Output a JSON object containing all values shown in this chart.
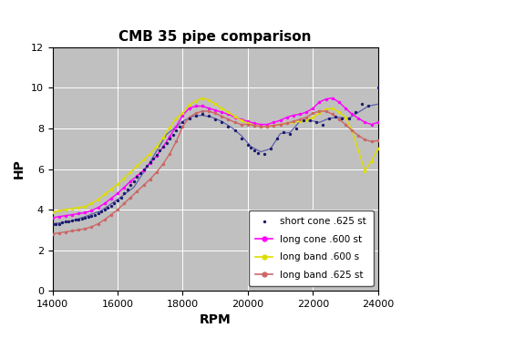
{
  "title": "CMB 35 pipe comparison",
  "xlabel": "RPM",
  "ylabel": "HP",
  "xlim": [
    14000,
    24000
  ],
  "ylim": [
    0,
    12
  ],
  "yticks": [
    0,
    2,
    4,
    6,
    8,
    10,
    12
  ],
  "xticks": [
    14000,
    16000,
    18000,
    20000,
    22000,
    24000
  ],
  "bg_color": "#c0c0c0",
  "fig_bg_color": "#ffffff",
  "series": {
    "short_cone": {
      "label": "short cone .625 st",
      "color": "#1a1a6e",
      "line_color": "#5555aa",
      "x": [
        14000,
        14100,
        14200,
        14300,
        14400,
        14500,
        14600,
        14700,
        14800,
        14900,
        15000,
        15100,
        15200,
        15300,
        15400,
        15500,
        15600,
        15700,
        15800,
        15900,
        16000,
        16100,
        16200,
        16300,
        16400,
        16500,
        16600,
        16700,
        16800,
        16900,
        17000,
        17100,
        17200,
        17300,
        17400,
        17500,
        17600,
        17700,
        17800,
        17900,
        18000,
        18200,
        18400,
        18600,
        18800,
        19000,
        19200,
        19400,
        19600,
        19800,
        20000,
        20100,
        20200,
        20300,
        20500,
        20700,
        20900,
        21100,
        21300,
        21500,
        21700,
        21900,
        22100,
        22300,
        22500,
        22700,
        22900,
        23100,
        23300,
        23500,
        23700,
        24000
      ],
      "y": [
        3.3,
        3.3,
        3.3,
        3.35,
        3.4,
        3.4,
        3.45,
        3.5,
        3.5,
        3.55,
        3.6,
        3.65,
        3.7,
        3.75,
        3.8,
        3.9,
        4.0,
        4.1,
        4.2,
        4.3,
        4.45,
        4.6,
        4.8,
        5.0,
        5.2,
        5.4,
        5.6,
        5.8,
        6.0,
        6.15,
        6.35,
        6.5,
        6.7,
        6.9,
        7.1,
        7.3,
        7.5,
        7.7,
        7.9,
        8.1,
        8.3,
        8.5,
        8.65,
        8.7,
        8.65,
        8.45,
        8.3,
        8.1,
        7.9,
        7.5,
        7.2,
        7.05,
        6.9,
        6.8,
        6.75,
        7.0,
        7.5,
        7.8,
        7.75,
        8.0,
        8.4,
        8.4,
        8.3,
        8.2,
        8.5,
        8.6,
        8.5,
        8.5,
        8.8,
        9.2,
        9.1,
        10.0
      ],
      "line_x": [
        14000,
        14500,
        15000,
        15500,
        16000,
        16500,
        17000,
        17500,
        18000,
        18300,
        18600,
        18900,
        19200,
        19500,
        19800,
        20100,
        20400,
        20700,
        21000,
        21300,
        21600,
        21900,
        22200,
        22500,
        22800,
        23100,
        23400,
        23700,
        24000
      ],
      "line_y": [
        3.3,
        3.4,
        3.65,
        3.95,
        4.5,
        5.1,
        6.35,
        7.7,
        8.35,
        8.6,
        8.65,
        8.55,
        8.35,
        8.05,
        7.65,
        7.1,
        6.85,
        7.0,
        7.75,
        7.8,
        8.35,
        8.4,
        8.3,
        8.5,
        8.55,
        8.5,
        8.8,
        9.1,
        9.2
      ]
    },
    "long_cone": {
      "label": "long cone .600 st",
      "color": "#ff00ff",
      "x": [
        14000,
        14200,
        14400,
        14600,
        14800,
        15000,
        15200,
        15400,
        15600,
        15800,
        16000,
        16200,
        16400,
        16600,
        16800,
        17000,
        17200,
        17400,
        17600,
        17800,
        18000,
        18200,
        18400,
        18600,
        18800,
        19000,
        19200,
        19400,
        19600,
        19800,
        20000,
        20200,
        20400,
        20600,
        20800,
        21000,
        21200,
        21400,
        21600,
        21800,
        22000,
        22200,
        22400,
        22600,
        22800,
        23000,
        23200,
        23400,
        23600,
        23800,
        24000
      ],
      "y": [
        3.6,
        3.65,
        3.7,
        3.75,
        3.8,
        3.85,
        3.95,
        4.1,
        4.3,
        4.55,
        4.8,
        5.1,
        5.4,
        5.65,
        5.95,
        6.3,
        6.65,
        7.1,
        7.6,
        8.1,
        8.65,
        9.0,
        9.1,
        9.1,
        9.0,
        8.9,
        8.8,
        8.7,
        8.55,
        8.45,
        8.35,
        8.25,
        8.2,
        8.2,
        8.3,
        8.4,
        8.55,
        8.65,
        8.7,
        8.8,
        9.0,
        9.3,
        9.45,
        9.5,
        9.3,
        9.0,
        8.7,
        8.5,
        8.3,
        8.2,
        8.3
      ]
    },
    "long_band_600": {
      "label": "long band .600 s",
      "color": "#dddd00",
      "x": [
        14000,
        14200,
        14400,
        14600,
        14800,
        15000,
        15200,
        15400,
        15600,
        15800,
        16000,
        16200,
        16400,
        16600,
        16800,
        17000,
        17200,
        17400,
        17600,
        17800,
        18000,
        18200,
        18400,
        18600,
        18800,
        19000,
        19200,
        19400,
        19600,
        19800,
        20000,
        20200,
        20400,
        20600,
        20800,
        21000,
        21200,
        21400,
        21600,
        21800,
        22000,
        22200,
        22400,
        22600,
        22800,
        23000,
        23200,
        23400,
        23600,
        23800,
        24000
      ],
      "y": [
        3.85,
        3.95,
        4.0,
        4.05,
        4.1,
        4.15,
        4.3,
        4.5,
        4.75,
        5.0,
        5.25,
        5.55,
        5.85,
        6.15,
        6.45,
        6.75,
        7.1,
        7.55,
        8.05,
        8.5,
        8.75,
        9.15,
        9.35,
        9.5,
        9.4,
        9.2,
        9.0,
        8.8,
        8.6,
        8.4,
        8.25,
        8.15,
        8.1,
        8.1,
        8.15,
        8.2,
        8.25,
        8.3,
        8.35,
        8.4,
        8.55,
        8.75,
        8.95,
        9.0,
        8.8,
        8.55,
        7.9,
        6.9,
        5.9,
        6.4,
        7.0
      ]
    },
    "long_band_625": {
      "label": "long band .625 st",
      "color": "#cc6666",
      "x": [
        14000,
        14200,
        14400,
        14600,
        14800,
        15000,
        15200,
        15400,
        15600,
        15800,
        16000,
        16200,
        16400,
        16600,
        16800,
        17000,
        17200,
        17400,
        17600,
        17800,
        18000,
        18200,
        18400,
        18600,
        18800,
        19000,
        19200,
        19400,
        19600,
        19800,
        20000,
        20200,
        20400,
        20600,
        20800,
        21000,
        21200,
        21400,
        21600,
        21800,
        22000,
        22200,
        22400,
        22600,
        22800,
        23000,
        23200,
        23400,
        23600,
        23800,
        24000
      ],
      "y": [
        2.8,
        2.85,
        2.9,
        2.95,
        3.0,
        3.05,
        3.15,
        3.3,
        3.5,
        3.75,
        4.0,
        4.3,
        4.6,
        4.9,
        5.2,
        5.5,
        5.85,
        6.25,
        6.75,
        7.35,
        8.1,
        8.55,
        8.75,
        8.85,
        8.85,
        8.75,
        8.6,
        8.45,
        8.3,
        8.2,
        8.2,
        8.15,
        8.1,
        8.1,
        8.15,
        8.2,
        8.25,
        8.35,
        8.45,
        8.55,
        8.75,
        8.85,
        8.85,
        8.7,
        8.45,
        8.2,
        7.9,
        7.65,
        7.45,
        7.35,
        7.4
      ]
    }
  }
}
